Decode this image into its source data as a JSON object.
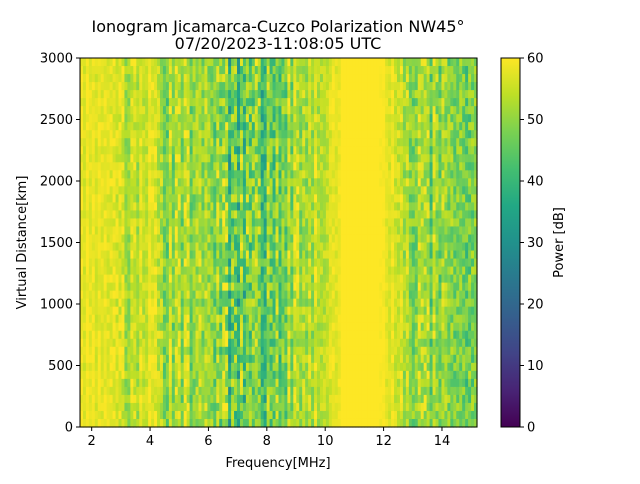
{
  "chart_data": {
    "type": "heatmap",
    "title": "Ionogram Jicamarca-Cuzco Polarization NW45°",
    "subtitle": "07/20/2023-11:08:05 UTC",
    "xlabel": "Frequency[MHz]",
    "ylabel": "Virtual Distance[km]",
    "xlim": [
      1.6,
      15.2
    ],
    "ylim": [
      0,
      3000
    ],
    "x_ticks": [
      2,
      4,
      6,
      8,
      10,
      12,
      14
    ],
    "y_ticks": [
      0,
      500,
      1000,
      1500,
      2000,
      2500,
      3000
    ],
    "colorbar": {
      "label": "Power [dB]",
      "range": [
        0,
        60
      ],
      "ticks": [
        0,
        10,
        20,
        30,
        40,
        50,
        60
      ],
      "colormap": "viridis"
    },
    "power_profile_by_frequency": {
      "frequencies_mhz": [
        1.6,
        2.0,
        2.4,
        2.8,
        3.0,
        3.4,
        3.8,
        4.0,
        4.3,
        4.6,
        5.0,
        5.4,
        5.8,
        6.2,
        6.6,
        7.0,
        7.4,
        7.8,
        8.2,
        8.6,
        9.0,
        9.4,
        9.8,
        10.2,
        10.6,
        11.0,
        11.4,
        11.8,
        12.2,
        12.6,
        13.0,
        13.4,
        13.8,
        14.2,
        14.6,
        15.0,
        15.2
      ],
      "mean_power_db": [
        58,
        58,
        58,
        56,
        53,
        54,
        55,
        58,
        53,
        50,
        51,
        51,
        52,
        50,
        44,
        42,
        45,
        46,
        47,
        49,
        51,
        52,
        54,
        57,
        60,
        60,
        60,
        60,
        58,
        54,
        51,
        50,
        50,
        50,
        52,
        47,
        55
      ]
    }
  }
}
